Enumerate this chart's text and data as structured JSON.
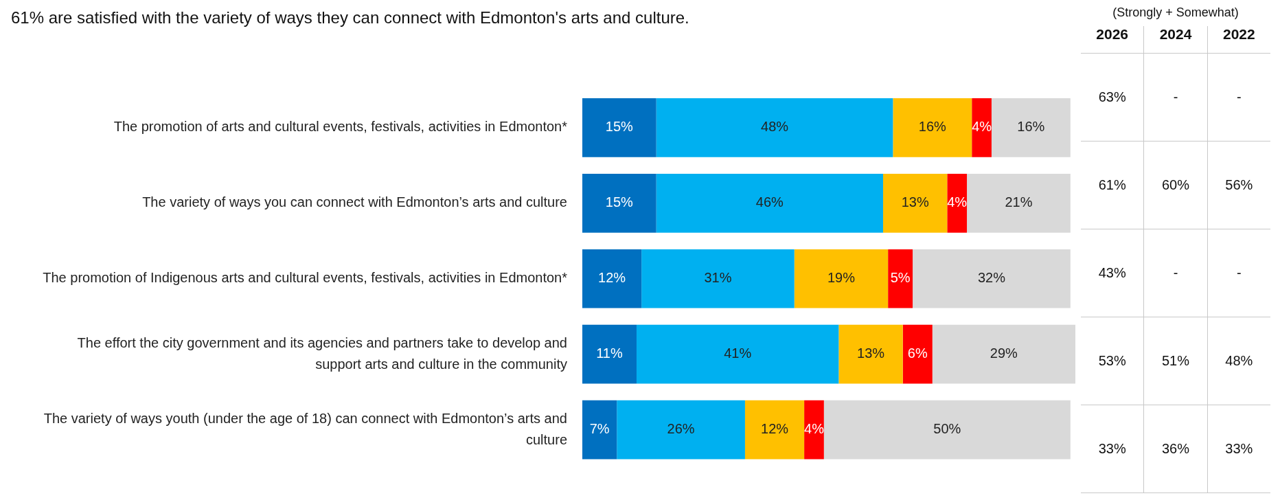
{
  "chart_data": [
    {
      "type": "bar",
      "orientation": "horizontal",
      "stacked": true,
      "title": "61% are satisfied with the variety of ways they can connect with Edmonton's arts and culture.",
      "categories": [
        "The promotion of arts and cultural events, festivals, activities in Edmonton*",
        "The variety of ways you can connect with Edmonton’s arts and culture",
        "The promotion of Indigenous arts and cultural events, festivals, activities in Edmonton*",
        "The effort the city government and its agencies and partners take to develop and support arts and culture in the community",
        "The variety of ways youth (under the age of 18) can connect with Edmonton’s arts and culture"
      ],
      "xlim": [
        0,
        100
      ],
      "tick_labels": "y",
      "legend": false,
      "grid": false,
      "series": [
        {
          "color": "#0070c0",
          "values": [
            15,
            15,
            12,
            11,
            7
          ],
          "value_labels": [
            "15%",
            "15%",
            "12%",
            "11%",
            "7%"
          ]
        },
        {
          "color": "#00b0f0",
          "values": [
            48,
            46,
            31,
            41,
            26
          ],
          "value_labels": [
            "48%",
            "46%",
            "31%",
            "41%",
            "26%"
          ]
        },
        {
          "color": "#ffc000",
          "values": [
            16,
            13,
            19,
            13,
            12
          ],
          "value_labels": [
            "16%",
            "13%",
            "19%",
            "13%",
            "12%"
          ]
        },
        {
          "color": "#ff0000",
          "values": [
            4,
            4,
            5,
            6,
            4
          ],
          "value_labels": [
            "4%",
            "4%",
            "5%",
            "6%",
            "4%"
          ]
        },
        {
          "color": "#d9d9d9",
          "values": [
            16,
            21,
            32,
            29,
            50
          ],
          "value_labels": [
            "16%",
            "21%",
            "32%",
            "29%",
            "50%"
          ]
        }
      ]
    },
    {
      "type": "other",
      "title": "(Strongly + Somewhat)",
      "categories": [
        "2026",
        "2024",
        "2022"
      ],
      "cell_labels": [
        [
          "63%",
          "-",
          "-"
        ],
        [
          "61%",
          "60%",
          "56%"
        ],
        [
          "43%",
          "-",
          "-"
        ],
        [
          "53%",
          "51%",
          "48%"
        ],
        [
          "33%",
          "36%",
          "33%"
        ]
      ]
    }
  ]
}
